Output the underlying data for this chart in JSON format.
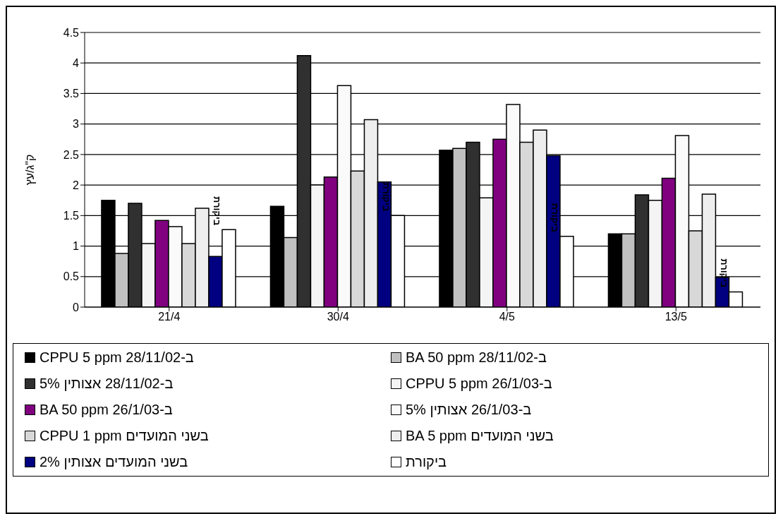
{
  "chart_data": {
    "type": "bar",
    "ylabel": "ק\"ג/עץ",
    "categories": [
      "21/4",
      "30/4",
      "4/5",
      "13/5"
    ],
    "ylim": [
      0,
      4.5
    ],
    "yticks": [
      0,
      0.5,
      1,
      1.5,
      2,
      2.5,
      3,
      3.5,
      4,
      4.5
    ],
    "grid": "y",
    "legend": "bottom",
    "series": [
      {
        "name": "ב-28/11/02 CPPU 5 ppm",
        "color": "#000000",
        "values": [
          1.75,
          1.65,
          2.57,
          1.2
        ]
      },
      {
        "name": "ב-28/11/02 BA 50 ppm",
        "color": "#c0c0c0",
        "values": [
          0.88,
          1.14,
          2.6,
          1.2
        ]
      },
      {
        "name": "ב-28/11/02 אצותין 5%",
        "color": "#303030",
        "values": [
          1.7,
          4.12,
          2.7,
          1.84
        ]
      },
      {
        "name": "ב-26/1/03 CPPU 5 ppm",
        "color": "#f4f4f4",
        "values": [
          1.04,
          2.0,
          1.79,
          1.75
        ]
      },
      {
        "name": "ב-26/1/03 BA 50 ppm",
        "color": "#800080",
        "values": [
          1.42,
          2.13,
          2.75,
          2.11
        ]
      },
      {
        "name": "ב-26/1/03 אצותין 5%",
        "color": "#fafafa",
        "values": [
          1.32,
          3.63,
          3.32,
          2.81
        ]
      },
      {
        "name": "בשני המועדים CPPU 1 ppm",
        "color": "#d8d8d8",
        "values": [
          1.04,
          2.23,
          2.7,
          1.25
        ]
      },
      {
        "name": "בשני המועדים BA 5 ppm",
        "color": "#eeeeee",
        "values": [
          1.62,
          3.07,
          2.9,
          1.85
        ]
      },
      {
        "name": "בשני המועדים אצותין 2%",
        "color": "#000080",
        "values": [
          0.83,
          2.05,
          2.48,
          0.49
        ]
      },
      {
        "name": "ביקורת",
        "color": "#ffffff",
        "values": [
          1.27,
          1.5,
          1.16,
          0.25
        ]
      }
    ],
    "annotations": [
      "ביקורת",
      "ביקורת",
      "ביקורת",
      "ביקורת"
    ]
  }
}
